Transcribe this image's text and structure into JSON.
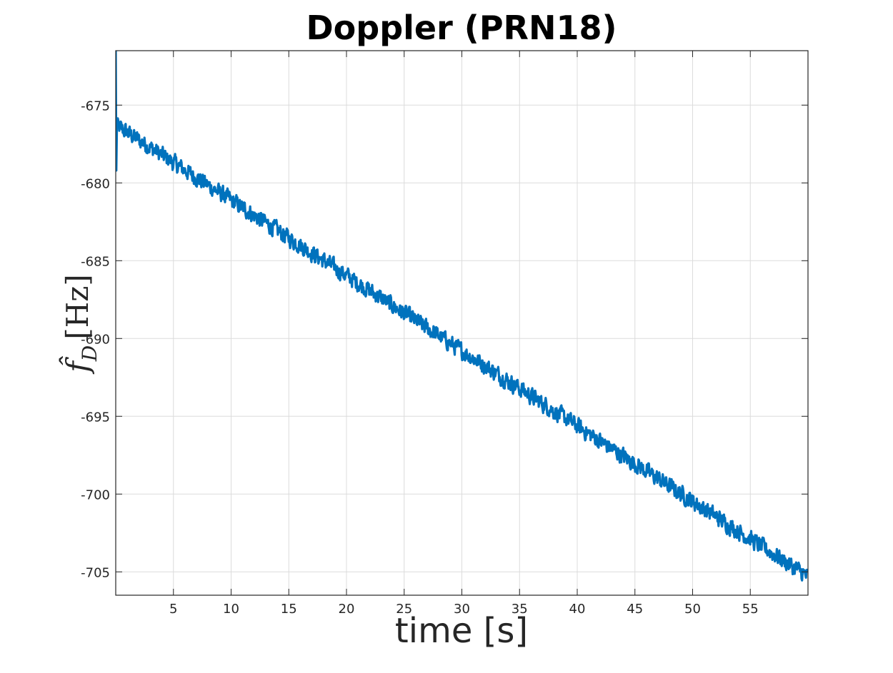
{
  "chart_data": {
    "type": "line",
    "title": "Doppler (PRN18)",
    "xlabel": "time [s]",
    "ylabel": "f̂_D [Hz]",
    "ylabel_symbol": "f̂",
    "ylabel_subscript": "D",
    "ylabel_unit": "[Hz]",
    "xlim": [
      0,
      60
    ],
    "ylim": [
      -706.5,
      -671.5
    ],
    "xticks": [
      5,
      10,
      15,
      20,
      25,
      30,
      35,
      40,
      45,
      50,
      55
    ],
    "xtick_labels": [
      "5",
      "10",
      "15",
      "20",
      "25",
      "30",
      "35",
      "40",
      "45",
      "50",
      "55"
    ],
    "yticks": [
      -675,
      -680,
      -685,
      -690,
      -695,
      -700,
      -705
    ],
    "ytick_labels": [
      "-675",
      "-680",
      "-685",
      "-690",
      "-695",
      "-700",
      "-705"
    ],
    "grid": true,
    "series": [
      {
        "color": "#0072BD",
        "trend": {
          "x_start": 0.05,
          "y_start": -676.3,
          "x_end": 60,
          "y_end": -705.3
        },
        "noise_amplitude_hz": 0.75,
        "initial_transient": {
          "x": [
            0,
            0.05,
            0.1
          ],
          "y": [
            -671.5,
            -679.2,
            -676.5
          ]
        }
      }
    ]
  }
}
